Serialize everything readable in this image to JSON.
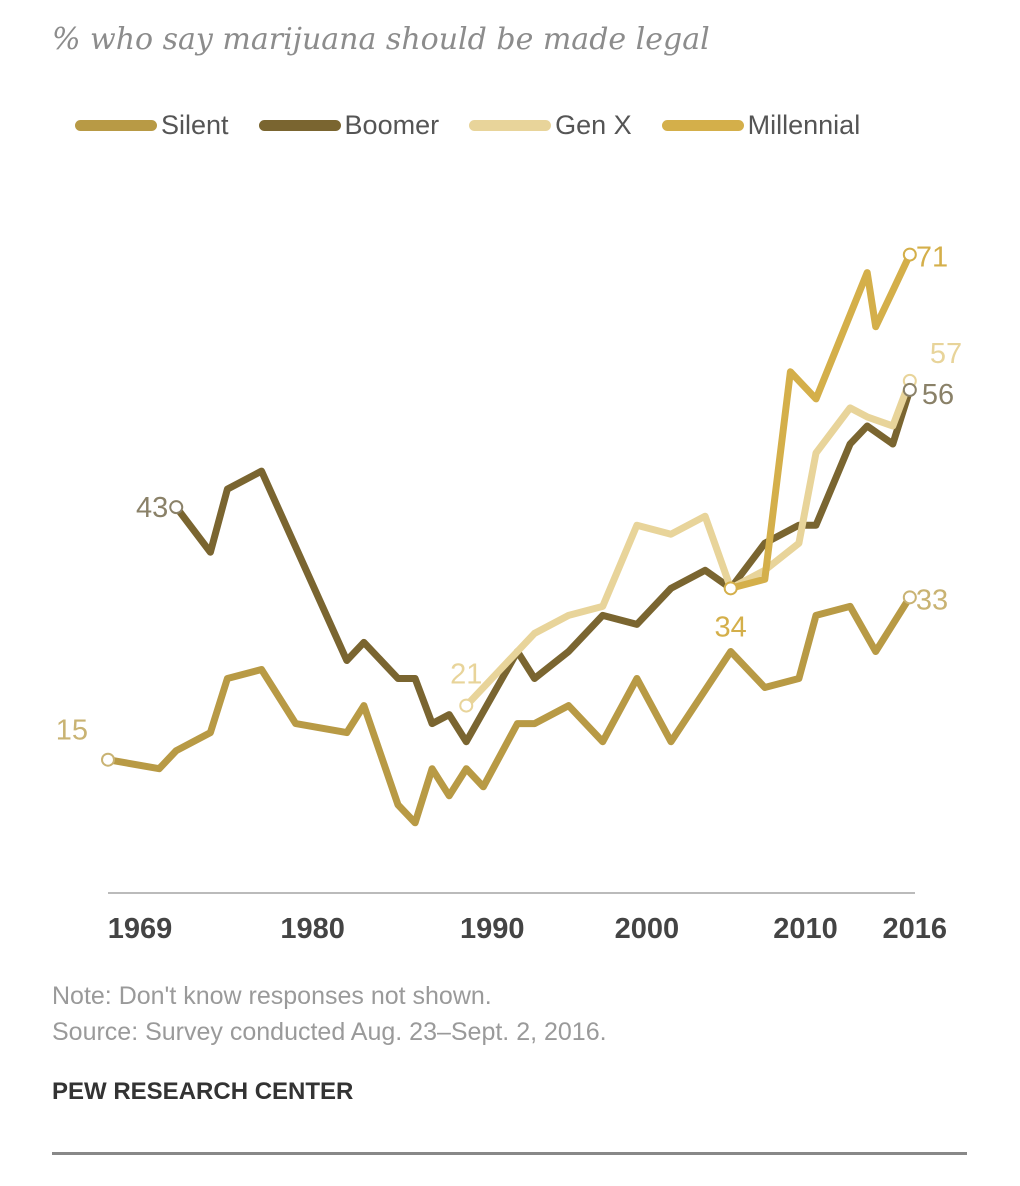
{
  "chart_data": {
    "type": "line",
    "title": "% who say marijuana should be made legal",
    "xlabel": "",
    "ylabel": "",
    "xlim": [
      1969,
      2016
    ],
    "ylim": [
      0,
      80
    ],
    "grid": false,
    "legend": "top",
    "x_ticks": [
      "1969",
      "1980",
      "1990",
      "2000",
      "2010",
      "2016"
    ],
    "series": [
      {
        "name": "Silent",
        "color": "#b89a45",
        "points": [
          [
            1969,
            15
          ],
          [
            1972,
            14
          ],
          [
            1973,
            16
          ],
          [
            1975,
            18
          ],
          [
            1976,
            24
          ],
          [
            1978,
            25
          ],
          [
            1980,
            19
          ],
          [
            1983,
            18
          ],
          [
            1984,
            21
          ],
          [
            1986,
            10
          ],
          [
            1987,
            8
          ],
          [
            1988,
            14
          ],
          [
            1989,
            11
          ],
          [
            1990,
            14
          ],
          [
            1991,
            12
          ],
          [
            1993,
            19
          ],
          [
            1994,
            19
          ],
          [
            1996,
            21
          ],
          [
            1998,
            17
          ],
          [
            2000,
            24
          ],
          [
            2002,
            17
          ],
          [
            2005.5,
            27
          ],
          [
            2007.5,
            23
          ],
          [
            2009.5,
            24
          ],
          [
            2010.5,
            31
          ],
          [
            2012.5,
            32
          ],
          [
            2014,
            27
          ],
          [
            2016,
            33
          ]
        ]
      },
      {
        "name": "Boomer",
        "color": "#7a6530",
        "points": [
          [
            1973,
            43
          ],
          [
            1975,
            38
          ],
          [
            1976,
            45
          ],
          [
            1978,
            47
          ],
          [
            1983,
            26
          ],
          [
            1984,
            28
          ],
          [
            1986,
            24
          ],
          [
            1987,
            24
          ],
          [
            1988,
            19
          ],
          [
            1989,
            20
          ],
          [
            1990,
            17
          ],
          [
            1993,
            27
          ],
          [
            1994,
            24
          ],
          [
            1996,
            27
          ],
          [
            1998,
            31
          ],
          [
            2000,
            30
          ],
          [
            2002,
            34
          ],
          [
            2004,
            36
          ],
          [
            2005.5,
            34
          ],
          [
            2007.5,
            39
          ],
          [
            2009.5,
            41
          ],
          [
            2010.5,
            41
          ],
          [
            2012.5,
            50
          ],
          [
            2013.5,
            52
          ],
          [
            2015,
            50
          ],
          [
            2016,
            56
          ]
        ]
      },
      {
        "name": "Gen X",
        "color": "#e8d49a",
        "points": [
          [
            1990,
            21
          ],
          [
            1993,
            27
          ],
          [
            1994,
            29
          ],
          [
            1996,
            31
          ],
          [
            1998,
            32
          ],
          [
            2000,
            41
          ],
          [
            2002,
            40
          ],
          [
            2004,
            42
          ],
          [
            2005.5,
            34
          ],
          [
            2007.5,
            36
          ],
          [
            2009.5,
            39
          ],
          [
            2010.5,
            49
          ],
          [
            2012.5,
            54
          ],
          [
            2013.5,
            53
          ],
          [
            2015,
            52
          ],
          [
            2016,
            57
          ]
        ]
      },
      {
        "name": "Millennial",
        "color": "#d4af4a",
        "points": [
          [
            2005.5,
            34
          ],
          [
            2007.5,
            35
          ],
          [
            2009,
            58
          ],
          [
            2010.5,
            55
          ],
          [
            2013.5,
            69
          ],
          [
            2014,
            63
          ],
          [
            2015,
            67
          ],
          [
            2016,
            71
          ]
        ]
      }
    ],
    "annotations": [
      {
        "text": "15",
        "series": "Silent",
        "year": 1969,
        "value": 15,
        "color": "#c9b373"
      },
      {
        "text": "43",
        "series": "Boomer",
        "year": 1973,
        "value": 43,
        "color": "#8a8168"
      },
      {
        "text": "21",
        "series": "Gen X",
        "year": 1990,
        "value": 21,
        "color": "#e8d49a"
      },
      {
        "text": "34",
        "series": "Millennial",
        "year": 2005.5,
        "value": 34,
        "color": "#d4af4a"
      },
      {
        "text": "71",
        "series": "Millennial",
        "year": 2016,
        "value": 71,
        "color": "#d4af4a"
      },
      {
        "text": "57",
        "series": "Gen X",
        "year": 2016,
        "value": 57,
        "color": "#e8d49a"
      },
      {
        "text": "56",
        "series": "Boomer",
        "year": 2016,
        "value": 56,
        "color": "#8a8168"
      },
      {
        "text": "33",
        "series": "Silent",
        "year": 2016,
        "value": 33,
        "color": "#c9b373"
      }
    ]
  },
  "footer": {
    "note": "Note: Don't know responses not shown.",
    "source": "Source: Survey conducted Aug. 23–Sept. 2, 2016.",
    "brand": "PEW RESEARCH CENTER"
  }
}
